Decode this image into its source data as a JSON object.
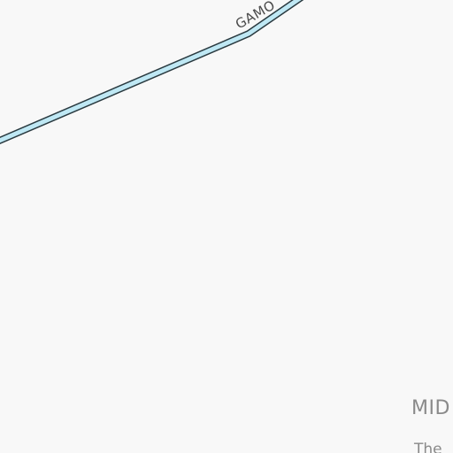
{
  "map": {
    "background_color": "#f8f8f8",
    "road": {
      "name": "GAMO",
      "fill_color": "#bfe8f4",
      "casing_color": "#2a3a40"
    },
    "place": {
      "label": "MID",
      "sublabel": "The"
    }
  }
}
